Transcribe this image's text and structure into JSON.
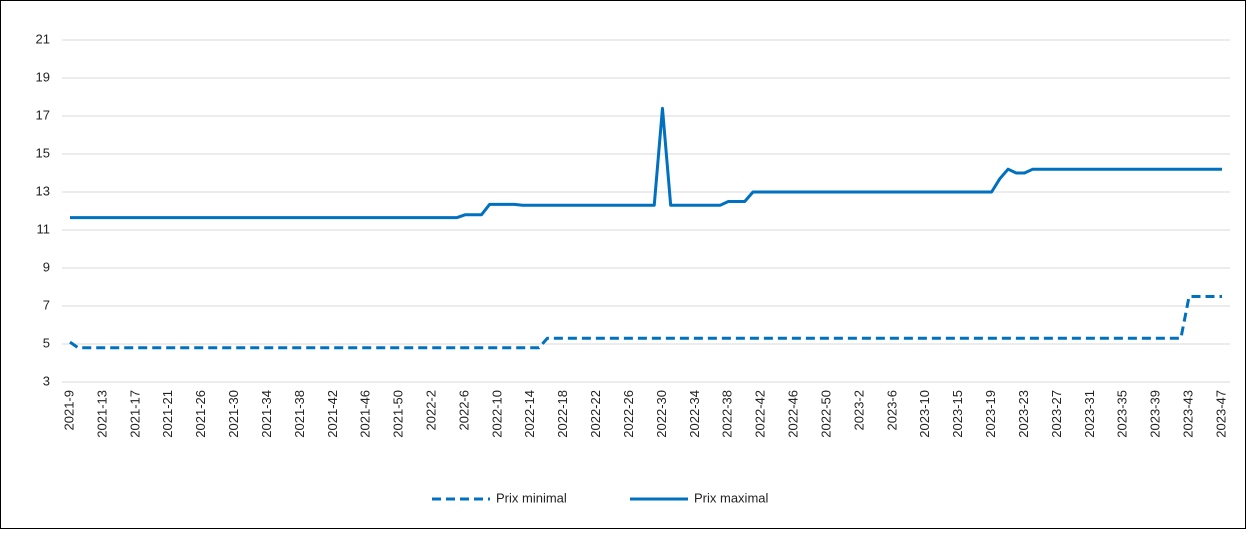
{
  "chart_data": {
    "type": "line",
    "categories": [
      "2021-9",
      null,
      null,
      null,
      "2021-13",
      null,
      null,
      null,
      "2021-17",
      null,
      null,
      null,
      "2021-21",
      null,
      null,
      null,
      "2021-26",
      null,
      null,
      null,
      "2021-30",
      null,
      null,
      null,
      "2021-34",
      null,
      null,
      null,
      "2021-38",
      null,
      null,
      null,
      "2021-42",
      null,
      null,
      null,
      "2021-46",
      null,
      null,
      null,
      "2021-50",
      null,
      null,
      null,
      "2022-2",
      null,
      null,
      null,
      "2022-6",
      null,
      null,
      null,
      "2022-10",
      null,
      null,
      null,
      "2022-14",
      null,
      null,
      null,
      "2022-18",
      null,
      null,
      null,
      "2022-22",
      null,
      null,
      null,
      "2022-26",
      null,
      null,
      null,
      "2022-30",
      null,
      null,
      null,
      "2022-34",
      null,
      null,
      null,
      "2022-38",
      null,
      null,
      null,
      "2022-42",
      null,
      null,
      null,
      "2022-46",
      null,
      null,
      null,
      "2022-50",
      null,
      null,
      null,
      "2023-2",
      null,
      null,
      null,
      "2023-6",
      null,
      null,
      null,
      "2023-10",
      null,
      null,
      null,
      "2023-15",
      null,
      null,
      null,
      "2023-19",
      null,
      null,
      null,
      "2023-23",
      null,
      null,
      null,
      "2023-27",
      null,
      null,
      null,
      "2023-31",
      null,
      null,
      null,
      "2023-35",
      null,
      null,
      null,
      "2023-39",
      null,
      null,
      null,
      "2023-43",
      null,
      null,
      null,
      "2023-47"
    ],
    "series": [
      {
        "name": "Prix minimal",
        "color": "#0070c0",
        "dash": true,
        "values": [
          5.1,
          4.8,
          4.8,
          4.8,
          4.8,
          4.8,
          4.8,
          4.8,
          4.8,
          4.8,
          4.8,
          4.8,
          4.8,
          4.8,
          4.8,
          4.8,
          4.8,
          4.8,
          4.8,
          4.8,
          4.8,
          4.8,
          4.8,
          4.8,
          4.8,
          4.8,
          4.8,
          4.8,
          4.8,
          4.8,
          4.8,
          4.8,
          4.8,
          4.8,
          4.8,
          4.8,
          4.8,
          4.8,
          4.8,
          4.8,
          4.8,
          4.8,
          4.8,
          4.8,
          4.8,
          4.8,
          4.8,
          4.8,
          4.8,
          4.8,
          4.8,
          4.8,
          4.8,
          4.8,
          4.8,
          4.8,
          4.8,
          4.8,
          5.3,
          5.3,
          5.3,
          5.3,
          5.3,
          5.3,
          5.3,
          5.3,
          5.3,
          5.3,
          5.3,
          5.3,
          5.3,
          5.3,
          5.3,
          5.3,
          5.3,
          5.3,
          5.3,
          5.3,
          5.3,
          5.3,
          5.3,
          5.3,
          5.3,
          5.3,
          5.3,
          5.3,
          5.3,
          5.3,
          5.3,
          5.3,
          5.3,
          5.3,
          5.3,
          5.3,
          5.3,
          5.3,
          5.3,
          5.3,
          5.3,
          5.3,
          5.3,
          5.3,
          5.3,
          5.3,
          5.3,
          5.3,
          5.3,
          5.3,
          5.3,
          5.3,
          5.3,
          5.3,
          5.3,
          5.3,
          5.3,
          5.3,
          5.3,
          5.3,
          5.3,
          5.3,
          5.3,
          5.3,
          5.3,
          5.3,
          5.3,
          5.3,
          5.3,
          5.3,
          5.3,
          5.3,
          5.3,
          5.3,
          5.3,
          5.3,
          5.3,
          5.3,
          7.5,
          7.5,
          7.5,
          7.5,
          7.5
        ]
      },
      {
        "name": "Prix maximal",
        "color": "#0070c0",
        "dash": false,
        "values": [
          11.65,
          11.65,
          11.65,
          11.65,
          11.65,
          11.65,
          11.65,
          11.65,
          11.65,
          11.65,
          11.65,
          11.65,
          11.65,
          11.65,
          11.65,
          11.65,
          11.65,
          11.65,
          11.65,
          11.65,
          11.65,
          11.65,
          11.65,
          11.65,
          11.65,
          11.65,
          11.65,
          11.65,
          11.65,
          11.65,
          11.65,
          11.65,
          11.65,
          11.65,
          11.65,
          11.65,
          11.65,
          11.65,
          11.65,
          11.65,
          11.65,
          11.65,
          11.65,
          11.65,
          11.65,
          11.65,
          11.65,
          11.65,
          11.8,
          11.8,
          11.8,
          12.35,
          12.35,
          12.35,
          12.35,
          12.3,
          12.3,
          12.3,
          12.3,
          12.3,
          12.3,
          12.3,
          12.3,
          12.3,
          12.3,
          12.3,
          12.3,
          12.3,
          12.3,
          12.3,
          12.3,
          12.3,
          17.4,
          12.3,
          12.3,
          12.3,
          12.3,
          12.3,
          12.3,
          12.3,
          12.5,
          12.5,
          12.5,
          13.0,
          13.0,
          13.0,
          13.0,
          13.0,
          13.0,
          13.0,
          13.0,
          13.0,
          13.0,
          13.0,
          13.0,
          13.0,
          13.0,
          13.0,
          13.0,
          13.0,
          13.0,
          13.0,
          13.0,
          13.0,
          13.0,
          13.0,
          13.0,
          13.0,
          13.0,
          13.0,
          13.0,
          13.0,
          13.0,
          13.7,
          14.2,
          14.0,
          14.0,
          14.2,
          14.2,
          14.2,
          14.2,
          14.2,
          14.2,
          14.2,
          14.2,
          14.2,
          14.2,
          14.2,
          14.2,
          14.2,
          14.2,
          14.2,
          14.2,
          14.2,
          14.2,
          14.2,
          14.2,
          14.2,
          14.2,
          14.2,
          14.2
        ]
      }
    ],
    "ylim": [
      3,
      21
    ],
    "yticks": [
      3,
      5,
      7,
      9,
      11,
      13,
      15,
      17,
      19,
      21
    ],
    "grid": true,
    "legend": "bottom"
  }
}
